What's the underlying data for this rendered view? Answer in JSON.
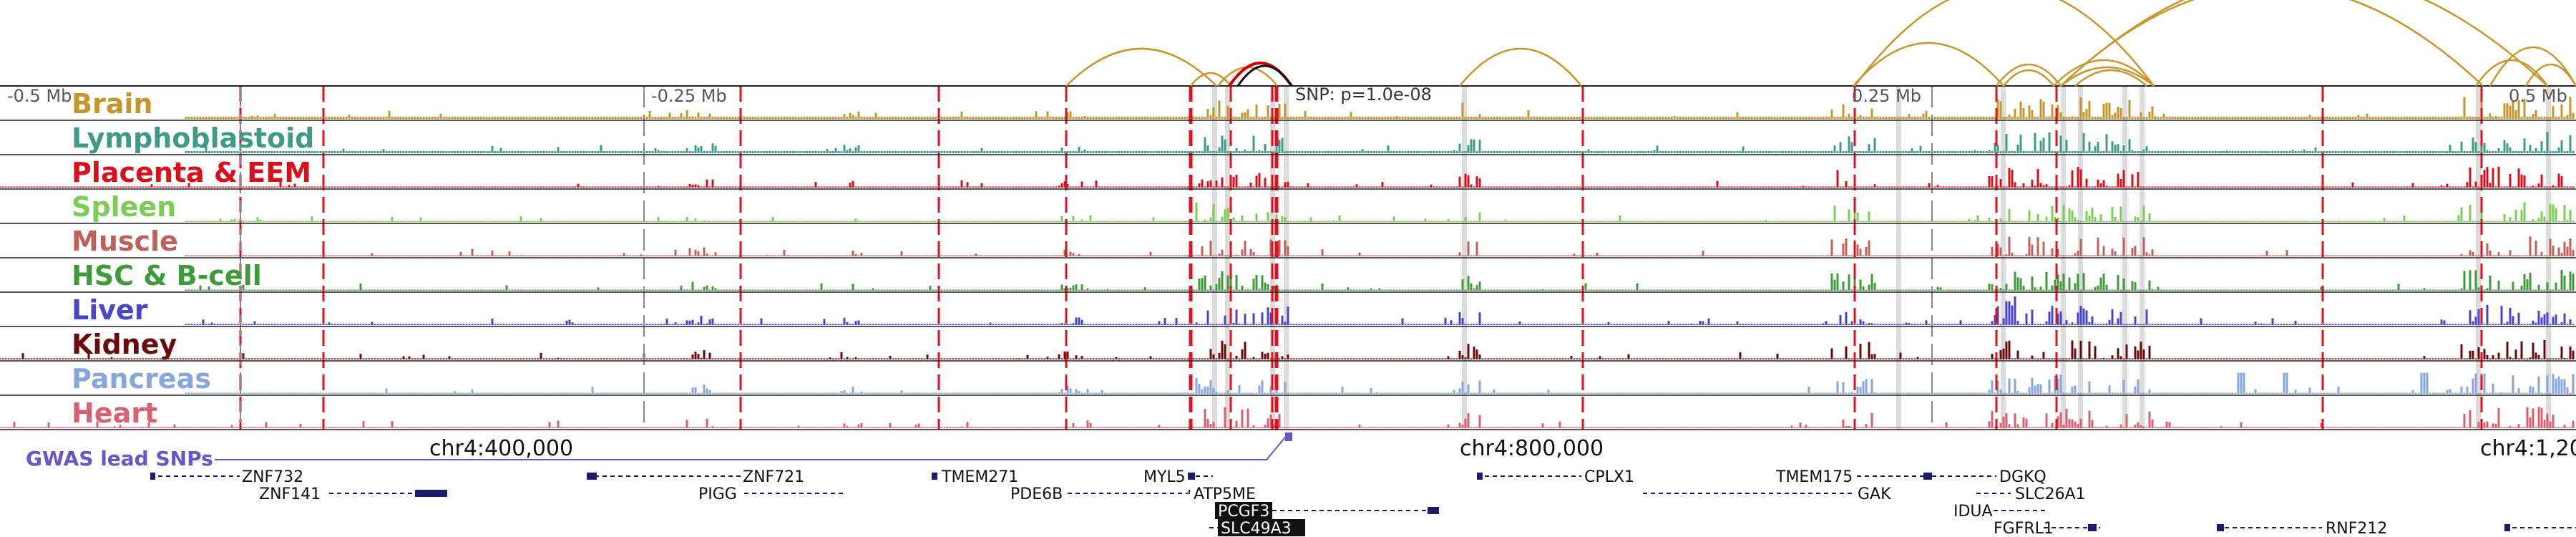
{
  "snp_label": "SNP: p=1.0e-08",
  "gwas_label": "GWAS lead SNPs",
  "colors": {
    "gwas": "#6a55c8",
    "arc": "#c9962e",
    "arc_focus": "#cc0000",
    "vline": "#e0101e",
    "highlight": "#dcdcdc",
    "gene": "#1a1a6e",
    "frame": "#222222"
  },
  "ruler": [
    {
      "label": "-0.5 Mb",
      "pos": -0.5
    },
    {
      "label": "-0.25 Mb",
      "pos": -0.25
    },
    {
      "label": "0.25 Mb",
      "pos": 0.25
    },
    {
      "label": "0.5 Mb",
      "pos": 0.5
    }
  ],
  "chrom_ticks": [
    {
      "label": "chr4:400,000",
      "pos": -0.42
    },
    {
      "label": "chr4:800,000",
      "pos": -0.02
    },
    {
      "label": "chr4:1,20",
      "pos": 0.58
    }
  ],
  "tracks": [
    {
      "name": "Brain",
      "color": "#c4962c"
    },
    {
      "name": "Lymphoblastoid",
      "color": "#3f9a87"
    },
    {
      "name": "Placenta & EEM",
      "color": "#d8101c"
    },
    {
      "name": "Spleen",
      "color": "#7ccd56"
    },
    {
      "name": "Muscle",
      "color": "#c0605a"
    },
    {
      "name": "HSC & B-cell",
      "color": "#3f9a3a"
    },
    {
      "name": "Liver",
      "color": "#4a46cc"
    },
    {
      "name": "Kidney",
      "color": "#6a0a0a"
    },
    {
      "name": "Pancreas",
      "color": "#86a6dc"
    },
    {
      "name": "Heart",
      "color": "#d86070"
    }
  ],
  "genes": [
    {
      "name": "ZNF732",
      "row": 0
    },
    {
      "name": "ZNF141",
      "row": 1
    },
    {
      "name": "ZNF721",
      "row": 0
    },
    {
      "name": "PIGG",
      "row": 1
    },
    {
      "name": "TMEM271",
      "row": 0
    },
    {
      "name": "PDE6B",
      "row": 1
    },
    {
      "name": "MYL5",
      "row": 0
    },
    {
      "name": "ATP5ME",
      "row": 1
    },
    {
      "name": "PCGF3",
      "row": 2
    },
    {
      "name": "SLC49A3",
      "row": 3
    },
    {
      "name": "CPLX1",
      "row": 0
    },
    {
      "name": "TMEM175",
      "row": 0
    },
    {
      "name": "GAK",
      "row": 1
    },
    {
      "name": "DGKQ",
      "row": 0
    },
    {
      "name": "SLC26A1",
      "row": 1
    },
    {
      "name": "IDUA",
      "row": 2
    },
    {
      "name": "FGFRL1",
      "row": 3
    },
    {
      "name": "RNF212",
      "row": 3
    }
  ]
}
